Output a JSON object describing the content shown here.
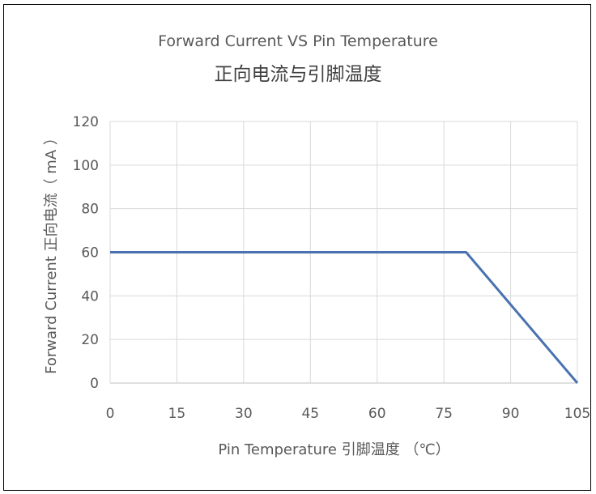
{
  "chart_data": {
    "type": "line",
    "title_en": "Forward Current VS Pin Temperature",
    "title_zh": "正向电流与引脚温度",
    "xlabel": "Pin Temperature 引脚温度 （℃）",
    "ylabel": "Forward Current 正向电流（ mA ）",
    "xlim": [
      0,
      105
    ],
    "ylim": [
      0,
      120
    ],
    "x_ticks": [
      0,
      15,
      30,
      45,
      60,
      75,
      90,
      105
    ],
    "y_ticks": [
      0,
      20,
      40,
      60,
      80,
      100,
      120
    ],
    "grid": true,
    "series": [
      {
        "color": "#4a72b0",
        "x": [
          0,
          80,
          105
        ],
        "y": [
          60,
          60,
          0
        ]
      }
    ]
  }
}
